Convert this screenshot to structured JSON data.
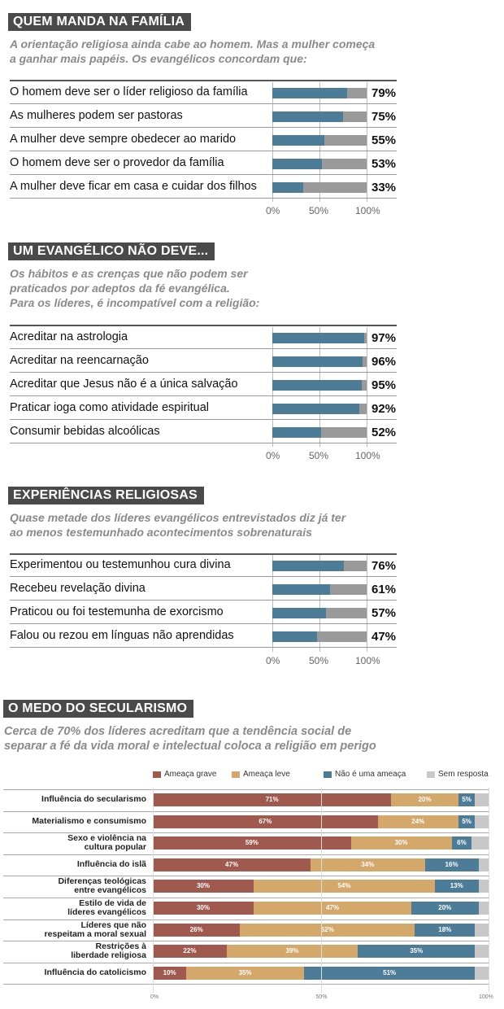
{
  "colors": {
    "blue": "#4d7c99",
    "grey": "#9a9a9a",
    "grave": "#a0594f",
    "leve": "#d4a86a",
    "nao": "#4d7c99",
    "sem": "#c8c8c8"
  },
  "sec1": {
    "title": "QUEM MANDA NA FAMÍLIA",
    "sub1": "A orientação religiosa ainda cabe ao homem. Mas a mulher começa",
    "sub2": "a ganhar mais papéis. Os evangélicos concordam que:"
  },
  "sec2": {
    "title": "UM EVANGÉLICO NÃO DEVE...",
    "sub1": "Os hábitos e as crenças que não podem ser",
    "sub2": "praticados por adeptos da fé evangélica.",
    "sub3": "Para os líderes, é incompatível com a religião:"
  },
  "sec3": {
    "title": "EXPERIÊNCIAS RELIGIOSAS",
    "sub1": "Quase metade dos líderes evangélicos entrevistados diz já ter",
    "sub2": "ao menos testemunhado acontecimentos sobrenaturais"
  },
  "sec4": {
    "title": "O MEDO DO SECULARISMO",
    "sub1": "Cerca de 70% dos líderes acreditam que a tendência social de",
    "sub2": "separar a fé da vida moral e intelectual coloca a religião em perigo"
  },
  "chart_data": [
    {
      "type": "bar",
      "title": "QUEM MANDA NA FAMÍLIA",
      "categories": [
        "O homem deve ser o líder religioso da família",
        "As mulheres podem ser pastoras",
        "A mulher deve sempre obedecer ao marido",
        "O homem deve ser o provedor da família",
        "A mulher deve ficar em casa e cuidar dos filhos"
      ],
      "values": [
        79,
        75,
        55,
        53,
        33
      ],
      "labels": [
        "79%",
        "75%",
        "55%",
        "53%",
        "33%"
      ],
      "ticks": [
        "0%",
        "50%",
        "100%"
      ],
      "xlim": [
        0,
        100
      ]
    },
    {
      "type": "bar",
      "title": "UM EVANGÉLICO NÃO DEVE...",
      "categories": [
        "Acreditar na astrologia",
        "Acreditar na reencarnação",
        "Acreditar que Jesus não é a única salvação",
        "Praticar ioga como atividade espiritual",
        "Consumir bebidas alcoólicas"
      ],
      "values": [
        97,
        96,
        95,
        92,
        52
      ],
      "labels": [
        "97%",
        "96%",
        "95%",
        "92%",
        "52%"
      ],
      "ticks": [
        "0%",
        "50%",
        "100%"
      ],
      "xlim": [
        0,
        100
      ]
    },
    {
      "type": "bar",
      "title": "EXPERIÊNCIAS RELIGIOSAS",
      "categories": [
        "Experimentou ou testemunhou cura divina",
        "Recebeu revelação divina",
        "Praticou ou foi testemunha de exorcismo",
        "Falou ou rezou em línguas não aprendidas"
      ],
      "values": [
        76,
        61,
        57,
        47
      ],
      "labels": [
        "76%",
        "61%",
        "57%",
        "47%"
      ],
      "ticks": [
        "0%",
        "50%",
        "100%"
      ],
      "xlim": [
        0,
        100
      ]
    },
    {
      "type": "bar",
      "stacked": true,
      "title": "O MEDO DO SECULARISMO",
      "legend": [
        "Ameaça grave",
        "Ameaça leve",
        "Não é uma ameaça",
        "Sem resposta"
      ],
      "categories": [
        [
          "Influência do secularismo"
        ],
        [
          "Materialismo e consumismo"
        ],
        [
          "Sexo e violência na",
          "cultura popular"
        ],
        [
          "Influência do islã"
        ],
        [
          "Diferenças teológicas",
          "entre evangélicos"
        ],
        [
          "Estilo de vida de",
          "líderes evangélicos"
        ],
        [
          "Líderes que não",
          "respeitam a moral sexual"
        ],
        [
          "Restrições à",
          "liberdade religiosa"
        ],
        [
          "Influência do catolicismo"
        ]
      ],
      "series": [
        {
          "name": "Ameaça grave",
          "values": [
            71,
            67,
            59,
            47,
            30,
            30,
            26,
            22,
            10
          ],
          "labels": [
            "71%",
            "67%",
            "59%",
            "47%",
            "30%",
            "30%",
            "26%",
            "22%",
            "10%"
          ]
        },
        {
          "name": "Ameaça leve",
          "values": [
            20,
            24,
            30,
            34,
            54,
            47,
            52,
            39,
            35
          ],
          "labels": [
            "20%",
            "24%",
            "30%",
            "34%",
            "54%",
            "47%",
            "52%",
            "39%",
            "35%"
          ]
        },
        {
          "name": "Não é uma ameaça",
          "values": [
            5,
            5,
            6,
            16,
            13,
            20,
            18,
            35,
            51
          ],
          "labels": [
            "5%",
            "5%",
            "6%",
            "16%",
            "13%",
            "20%",
            "18%",
            "35%",
            "51%"
          ]
        },
        {
          "name": "Sem resposta",
          "values": [
            4,
            4,
            5,
            3,
            3,
            3,
            4,
            4,
            4
          ]
        }
      ],
      "ticks": [
        "0%",
        "50%",
        "100%"
      ],
      "xlim": [
        0,
        100
      ]
    }
  ]
}
